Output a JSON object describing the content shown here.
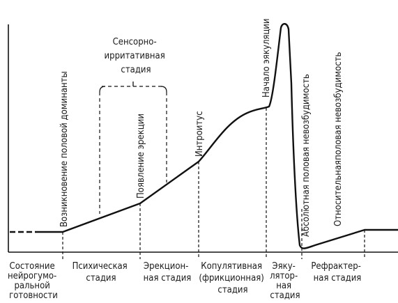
{
  "curve_labels": {
    "sensory_stage": [
      "Сенсорно-",
      "ирритативная",
      "стадия"
    ],
    "dominant": "Возникновение половой доминанты",
    "erection": "Появление эрекции",
    "introitus": "Интроитус",
    "ejaculation_onset": "Начало эякуляции",
    "absolute": "Абсолютная половая невозбудимость",
    "relative": "Относительнаяполовая невозбудимость"
  },
  "stages": [
    {
      "lines": [
        "Состояние",
        "нейрогумо-",
        "ральной",
        "готовности"
      ]
    },
    {
      "lines": [
        "Психическая",
        "стадия"
      ]
    },
    {
      "lines": [
        "Эрекцион-",
        "ная  стадия"
      ]
    },
    {
      "lines": [
        "Копулятивная",
        "(фрикционная)",
        "стадия"
      ]
    },
    {
      "lines": [
        "Эяку-",
        "лятор-",
        "ная",
        "стадия"
      ]
    },
    {
      "lines": [
        "Рефрактер-",
        "ная стадия"
      ]
    }
  ]
}
